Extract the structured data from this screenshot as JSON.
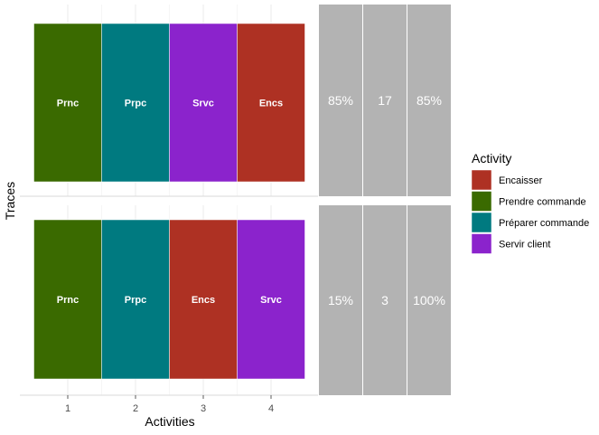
{
  "chart_data": {
    "type": "trace_explorer",
    "xlabel": "Activities",
    "ylabel": "Traces",
    "x_ticks": [
      "1",
      "2",
      "3",
      "4"
    ],
    "legend": {
      "title": "Activity",
      "placement": "right",
      "entries": [
        {
          "name": "Encaisser",
          "color": "#ae3123"
        },
        {
          "name": "Prendre commande",
          "color": "#3a6a00"
        },
        {
          "name": "Préparer commande",
          "color": "#007a80"
        },
        {
          "name": "Servir client",
          "color": "#8b23cc"
        }
      ]
    },
    "activity_colors": {
      "Encaisser": "#ae3123",
      "Prendre commande": "#3a6a00",
      "Préparer commande": "#007a80",
      "Servir client": "#8b23cc"
    },
    "traces": [
      {
        "activities": [
          {
            "position": 1,
            "activity": "Prendre commande",
            "label": "Prnc"
          },
          {
            "position": 2,
            "activity": "Préparer commande",
            "label": "Prpc"
          },
          {
            "position": 3,
            "activity": "Servir client",
            "label": "Srvc"
          },
          {
            "position": 4,
            "activity": "Encaisser",
            "label": "Encs"
          }
        ],
        "stats": [
          "85%",
          "17",
          "85%"
        ]
      },
      {
        "activities": [
          {
            "position": 1,
            "activity": "Prendre commande",
            "label": "Prnc"
          },
          {
            "position": 2,
            "activity": "Préparer commande",
            "label": "Prpc"
          },
          {
            "position": 3,
            "activity": "Encaisser",
            "label": "Encs"
          },
          {
            "position": 4,
            "activity": "Servir client",
            "label": "Srvc"
          }
        ],
        "stats": [
          "15%",
          "3",
          "100%"
        ]
      }
    ]
  }
}
